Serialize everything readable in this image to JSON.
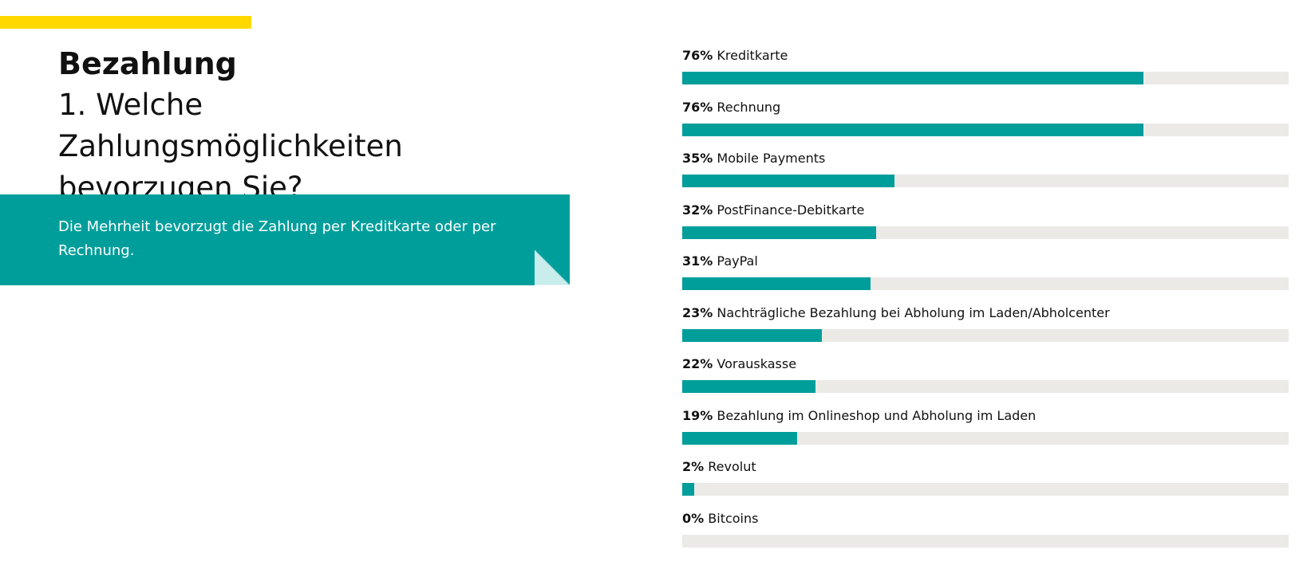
{
  "header": {
    "section_title": "Bezahlung",
    "question": "1. Welche Zahlungsmöglichkeiten bevorzugen Sie?"
  },
  "summary": {
    "text": "Die Mehrheit bevorzugt die Zahlung per Kreditkarte oder per Rechnung."
  },
  "colors": {
    "accent_stripe": "#ffd800",
    "teal": "#009e9b",
    "track": "#ebeae6",
    "curl_light": "#c9ecec"
  },
  "chart_data": {
    "type": "bar",
    "orientation": "horizontal",
    "unit": "%",
    "xlim": [
      0,
      100
    ],
    "grid": false,
    "categories": [
      "Kreditkarte",
      "Rechnung",
      "Mobile Payments",
      "PostFinance-Debitkarte",
      "PayPal",
      "Nachträgliche Bezahlung bei Abholung im Laden/Abholcenter",
      "Vorauskasse",
      "Bezahlung im Onlineshop und Abholung im Laden",
      "Revolut",
      "Bitcoins"
    ],
    "values": [
      76,
      76,
      35,
      32,
      31,
      23,
      22,
      19,
      2,
      0
    ],
    "value_labels": [
      "76%",
      "76%",
      "35%",
      "32%",
      "31%",
      "23%",
      "22%",
      "19%",
      "2%",
      "0%"
    ]
  }
}
